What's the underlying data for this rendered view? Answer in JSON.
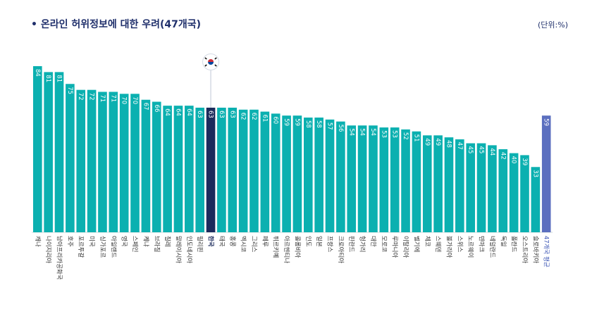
{
  "title": "• 온라인 허위정보에 대한 우려(47개국)",
  "unit": "(단위:%)",
  "colors": {
    "bar": "#0bb0b0",
    "highlight": "#1c2b5c",
    "average": "#5b6fbf",
    "value_text": "#ffffff",
    "highlight_label": "#1c2b5c",
    "average_label": "#3c56b5"
  },
  "marker_icon": "korea-flag-icon",
  "chart_data": {
    "type": "bar",
    "title": "• 온라인 허위정보에 대한 우려(47개국)",
    "unit": "(단위:%)",
    "categories": [
      "캐나",
      "나이지리아",
      "남아프리카공화국",
      "호주",
      "포르투갈",
      "미국",
      "싱가포르",
      "아일랜드",
      "영국",
      "스페인",
      "케냐",
      "브라질",
      "칠레",
      "말레이시아",
      "인도네시아",
      "필리핀",
      "한국",
      "태국",
      "홍콩",
      "멕시코",
      "그리스",
      "페루",
      "튀르키예",
      "아르헨티나",
      "콜롬비아",
      "인도",
      "일본",
      "프랑스",
      "크로아티아",
      "핀란드",
      "헝가리",
      "대만",
      "모로코",
      "루마니아",
      "이탈리아",
      "벨기에",
      "체코",
      "스웨덴",
      "불가리아",
      "스위스",
      "노르웨이",
      "덴마크",
      "네덜란드",
      "독일",
      "폴란드",
      "오스트리아",
      "슬로바키아",
      "47개국 평균"
    ],
    "values": [
      84,
      81,
      81,
      75,
      72,
      72,
      71,
      71,
      70,
      70,
      67,
      66,
      64,
      64,
      64,
      63,
      63,
      63,
      63,
      62,
      62,
      61,
      60,
      59,
      59,
      58,
      58,
      57,
      56,
      54,
      54,
      54,
      53,
      53,
      52,
      51,
      49,
      49,
      48,
      47,
      45,
      45,
      44,
      42,
      40,
      39,
      33,
      59
    ],
    "highlight": "한국",
    "average": "47개국 평균",
    "ylim": [
      0,
      90
    ]
  }
}
